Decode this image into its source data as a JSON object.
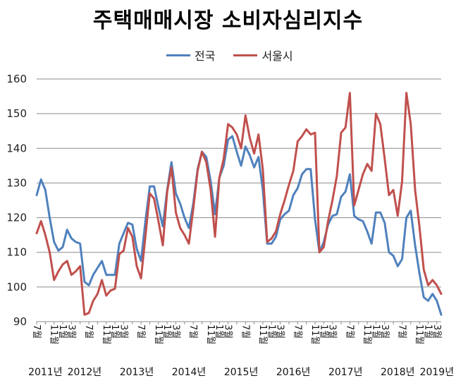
{
  "chart_data": {
    "type": "line",
    "title": "주택매매시장 소비자심리지수",
    "xlabel": "",
    "ylabel": "",
    "ylim": [
      90,
      160
    ],
    "yticks": [
      90,
      100,
      110,
      120,
      130,
      140,
      150,
      160
    ],
    "grid": true,
    "legend_position": "top",
    "x_month_labels": [
      {
        "index": 0,
        "label": "7월"
      },
      {
        "index": 4,
        "label": "11월"
      },
      {
        "index": 6,
        "label": "1월"
      },
      {
        "index": 8,
        "label": "3월"
      },
      {
        "index": 12,
        "label": "7월"
      },
      {
        "index": 16,
        "label": "11월"
      },
      {
        "index": 18,
        "label": "1월"
      },
      {
        "index": 20,
        "label": "3월"
      },
      {
        "index": 24,
        "label": "7월"
      },
      {
        "index": 28,
        "label": "11월"
      },
      {
        "index": 30,
        "label": "1월"
      },
      {
        "index": 32,
        "label": "3월"
      },
      {
        "index": 36,
        "label": "7월"
      },
      {
        "index": 40,
        "label": "11월"
      },
      {
        "index": 42,
        "label": "1월"
      },
      {
        "index": 44,
        "label": "3월"
      },
      {
        "index": 48,
        "label": "7월"
      },
      {
        "index": 52,
        "label": "11월"
      },
      {
        "index": 54,
        "label": "1월"
      },
      {
        "index": 56,
        "label": "3월"
      },
      {
        "index": 60,
        "label": "7월"
      },
      {
        "index": 64,
        "label": "11월"
      },
      {
        "index": 66,
        "label": "1월"
      },
      {
        "index": 68,
        "label": "3월"
      },
      {
        "index": 72,
        "label": "7월"
      },
      {
        "index": 76,
        "label": "11월"
      },
      {
        "index": 78,
        "label": "1월"
      },
      {
        "index": 80,
        "label": "3월"
      },
      {
        "index": 84,
        "label": "7월"
      },
      {
        "index": 88,
        "label": "11월"
      },
      {
        "index": 90,
        "label": "1월"
      },
      {
        "index": 92,
        "label": "3월"
      }
    ],
    "x_year_labels": [
      {
        "index": 2,
        "label": "2011년"
      },
      {
        "index": 11,
        "label": "2012년"
      },
      {
        "index": 23,
        "label": "2013년"
      },
      {
        "index": 35,
        "label": "2014년"
      },
      {
        "index": 47,
        "label": "2015년"
      },
      {
        "index": 59,
        "label": "2016년"
      },
      {
        "index": 71,
        "label": "2017년"
      },
      {
        "index": 83,
        "label": "2018년"
      },
      {
        "index": 92,
        "label": "2019년"
      }
    ],
    "series": [
      {
        "name": "전국",
        "color": "#4F81BD",
        "values": [
          126.5,
          131,
          128,
          120,
          113,
          110.5,
          111.5,
          116.5,
          114,
          113,
          112.5,
          101.5,
          100.5,
          103.5,
          105.5,
          107.5,
          103.5,
          103.5,
          103.5,
          112.5,
          115.5,
          118.5,
          118,
          111,
          107.5,
          119,
          129,
          129,
          123,
          117.5,
          128,
          136,
          127,
          124,
          120,
          117,
          124,
          134,
          139,
          137.5,
          130.5,
          121,
          131.5,
          135,
          142.5,
          143.5,
          139,
          135,
          140.5,
          138,
          134.5,
          137.5,
          128,
          112.5,
          112.5,
          114.5,
          119.5,
          121,
          122,
          126.5,
          128.5,
          132.5,
          134,
          134,
          119.5,
          110,
          113,
          118,
          120.5,
          121,
          126,
          127.5,
          132.5,
          120.5,
          119.5,
          119,
          116,
          112.5,
          121.5,
          121.5,
          118.5,
          110,
          109,
          106,
          108,
          120,
          122,
          112,
          104,
          97,
          96,
          98,
          96,
          92
        ]
      },
      {
        "name": "서울시",
        "color": "#C0504D",
        "values": [
          115.5,
          119,
          115,
          110,
          102,
          104.5,
          106.5,
          107.5,
          103.5,
          104.5,
          106,
          92,
          92.5,
          96,
          98,
          102,
          97.5,
          99,
          99.5,
          109.5,
          110.5,
          117,
          114.5,
          106,
          102.5,
          114.5,
          127,
          125.5,
          119,
          112,
          127.5,
          134.5,
          121.5,
          117,
          115,
          112.5,
          122.5,
          133.5,
          139,
          136,
          128,
          114.5,
          131.5,
          137,
          147,
          146,
          144,
          140,
          149.5,
          143,
          138.5,
          144,
          134,
          113,
          114,
          116,
          121,
          125,
          129.5,
          133.5,
          142,
          143.5,
          145.5,
          144,
          144.5,
          110,
          111.5,
          119,
          125,
          132,
          144.5,
          146,
          156,
          123.5,
          128,
          132.5,
          135.5,
          133.5,
          150,
          147,
          137,
          126.5,
          128,
          120.5,
          130.5,
          156,
          147,
          128,
          117.5,
          105,
          100.5,
          102,
          100.5,
          98
        ]
      }
    ]
  }
}
